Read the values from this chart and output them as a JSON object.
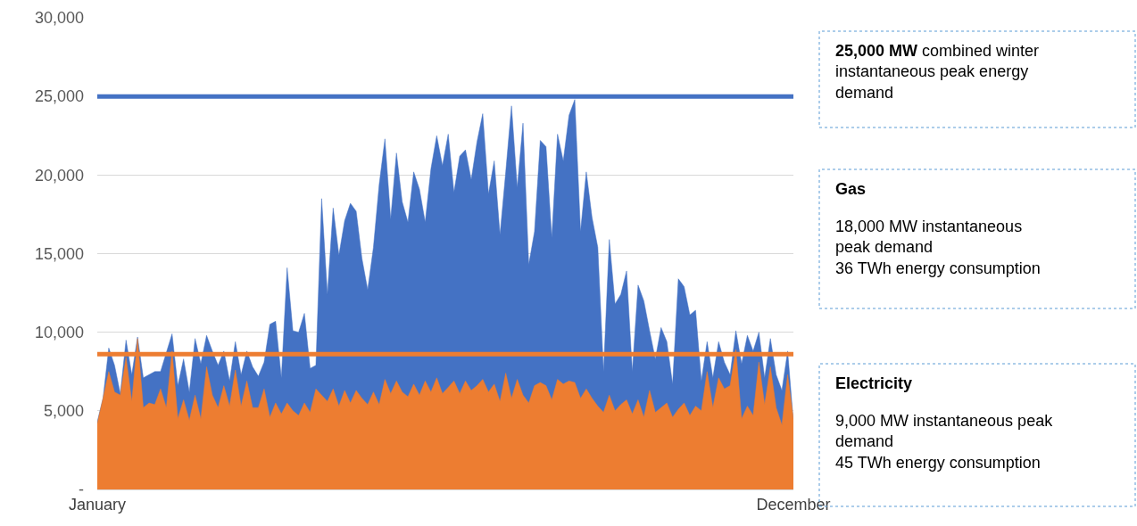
{
  "chart_data": {
    "type": "area",
    "categories": [
      "January",
      null,
      null,
      null,
      null,
      null,
      null,
      null,
      null,
      null,
      null,
      null,
      null,
      null,
      null,
      null,
      null,
      null,
      null,
      null,
      null,
      null,
      null,
      null,
      null,
      null,
      null,
      null,
      null,
      null,
      null,
      null,
      null,
      null,
      null,
      null,
      null,
      null,
      null,
      null,
      null,
      null,
      null,
      null,
      null,
      null,
      null,
      null,
      null,
      null,
      null,
      null,
      null,
      null,
      null,
      null,
      null,
      null,
      null,
      null,
      null,
      null,
      null,
      null,
      null,
      null,
      null,
      null,
      null,
      null,
      null,
      null,
      null,
      null,
      null,
      null,
      null,
      null,
      null,
      null,
      null,
      null,
      null,
      null,
      null,
      null,
      null,
      null,
      null,
      null,
      null,
      null,
      null,
      null,
      null,
      null,
      null,
      null,
      null,
      null,
      null,
      null,
      null,
      null,
      null,
      null,
      null,
      null,
      null,
      null,
      null,
      null,
      null,
      null,
      null,
      null,
      null,
      null,
      null,
      null,
      null,
      "December"
    ],
    "ylim": [
      0,
      30000
    ],
    "yticks": [
      {
        "value": 0,
        "label": "-"
      },
      {
        "value": 5000,
        "label": "5,000"
      },
      {
        "value": 10000,
        "label": "10,000"
      },
      {
        "value": 15000,
        "label": "15,000"
      },
      {
        "value": 20000,
        "label": "20,000"
      },
      {
        "value": 25000,
        "label": "25,000"
      },
      {
        "value": 30000,
        "label": "30,000"
      }
    ],
    "grid": "y",
    "series": [
      {
        "color": "#4472c4",
        "values": [
          4300,
          5800,
          9000,
          7900,
          6100,
          9500,
          7300,
          9700,
          7100,
          7300,
          7500,
          7500,
          8700,
          9900,
          6600,
          8300,
          6200,
          9600,
          8000,
          9800,
          8800,
          7900,
          8800,
          6900,
          9400,
          7300,
          8800,
          7800,
          7200,
          8100,
          10500,
          10700,
          7100,
          14100,
          10100,
          10000,
          11200,
          7700,
          7900,
          18500,
          12400,
          17900,
          14900,
          17100,
          18200,
          17700,
          14700,
          12700,
          15400,
          19400,
          22300,
          17200,
          21400,
          18300,
          17000,
          20200,
          19100,
          17000,
          20400,
          22500,
          20600,
          22600,
          18900,
          21200,
          21600,
          19700,
          22100,
          23900,
          18800,
          20900,
          16200,
          20200,
          24400,
          19200,
          23300,
          14300,
          16400,
          22200,
          21800,
          16000,
          22600,
          20900,
          23800,
          24800,
          16400,
          20200,
          17300,
          15400,
          7500,
          15900,
          11800,
          12400,
          13900,
          7500,
          13000,
          12000,
          10100,
          8300,
          10300,
          9400,
          6700,
          13400,
          12900,
          11100,
          11400,
          6900,
          9400,
          7100,
          9400,
          8100,
          7300,
          10100,
          8000,
          9800,
          8800,
          10000,
          7100,
          9600,
          7300,
          6300,
          8800,
          4300
        ]
      },
      {
        "color": "#ed7d31",
        "values": [
          4200,
          5800,
          7500,
          6200,
          6000,
          8400,
          5600,
          9600,
          5200,
          5500,
          5400,
          6400,
          5200,
          8800,
          4500,
          5700,
          4400,
          6000,
          4500,
          7800,
          6000,
          5200,
          6600,
          5300,
          7600,
          5300,
          6900,
          5200,
          5200,
          6400,
          4600,
          5500,
          4800,
          5500,
          5000,
          4700,
          5500,
          4900,
          6400,
          6000,
          5600,
          6400,
          5300,
          6300,
          5500,
          6300,
          5800,
          5400,
          6200,
          5400,
          7000,
          6100,
          6900,
          6200,
          5900,
          6700,
          6000,
          6900,
          6200,
          7100,
          6100,
          6500,
          6900,
          6100,
          6900,
          6300,
          6600,
          7000,
          6200,
          6700,
          5600,
          7400,
          5800,
          7000,
          6000,
          5500,
          6600,
          6800,
          6600,
          5700,
          7000,
          6700,
          6900,
          6800,
          5800,
          6400,
          5800,
          5300,
          4900,
          6000,
          5000,
          5400,
          5700,
          4800,
          5700,
          4600,
          6300,
          4900,
          5200,
          5500,
          4600,
          5100,
          5500,
          4700,
          5300,
          5000,
          7500,
          5200,
          7100,
          6400,
          6600,
          8900,
          4500,
          5300,
          4700,
          8100,
          5400,
          7800,
          5200,
          4100,
          7300,
          4500
        ]
      }
    ],
    "ref_lines": [
      {
        "axis": "y",
        "value": 25000,
        "color": "#4472c4"
      },
      {
        "axis": "y",
        "value": 8600,
        "color": "#ed7d31"
      }
    ],
    "annotations": [
      "25,000 MW",
      "combined winter\ninstantaneous peak energy\ndemand",
      "Gas",
      "18,000 MW instantaneous\npeak demand\n36 TWh energy consumption",
      "Electricity",
      "9,000 MW instantaneous peak\ndemand\n45 TWh energy consumption"
    ]
  }
}
